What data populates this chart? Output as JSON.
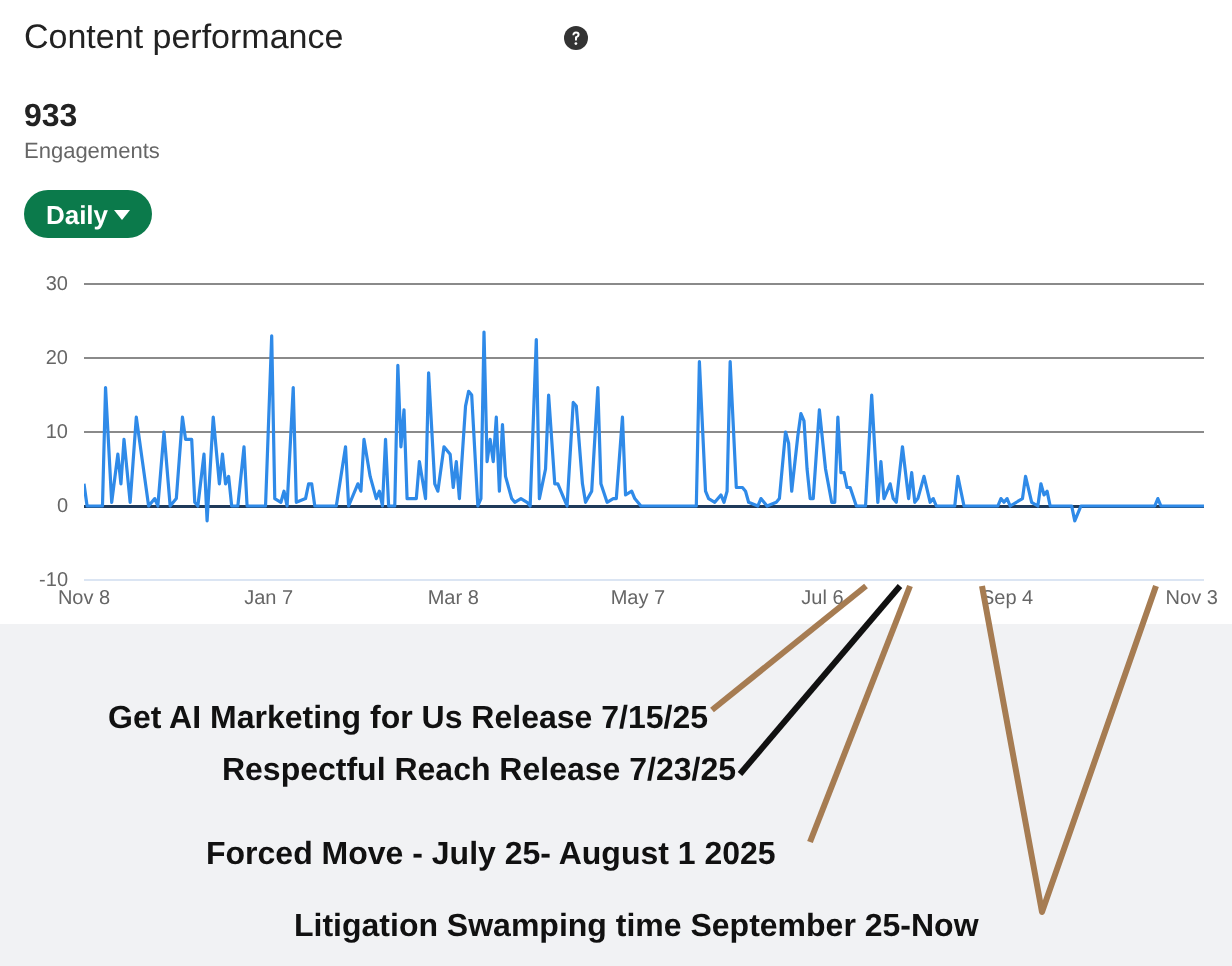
{
  "chart_data": {
    "type": "line",
    "title": "Content performance",
    "annotations": [
      "933",
      "Engagements",
      "Daily",
      "Get AI Marketing for Us Release 7/15/25",
      "Respectful Reach Release 7/23/25",
      "Forced Move - July 25- August 1 2025",
      "Litigation Swamping time September 25-Now"
    ],
    "x": [
      "2024-11-08",
      "2024-11-09",
      "2024-11-14",
      "2024-11-15",
      "2024-11-17",
      "2024-11-19",
      "2024-11-20",
      "2024-11-21",
      "2024-11-23",
      "2024-11-25",
      "2024-11-27",
      "2024-11-29",
      "2024-12-01",
      "2024-12-02",
      "2024-12-04",
      "2024-12-06",
      "2024-12-08",
      "2024-12-10",
      "2024-12-11",
      "2024-12-13",
      "2024-12-14",
      "2024-12-15",
      "2024-12-17",
      "2024-12-18",
      "2024-12-20",
      "2024-12-22",
      "2024-12-23",
      "2024-12-24",
      "2024-12-25",
      "2024-12-26",
      "2024-12-28",
      "2024-12-30",
      "2024-12-31",
      "2025-01-06",
      "2025-01-08",
      "2025-01-09",
      "2025-01-11",
      "2025-01-12",
      "2025-01-13",
      "2025-01-15",
      "2025-01-16",
      "2025-01-19",
      "2025-01-20",
      "2025-01-21",
      "2025-01-22",
      "2025-01-29",
      "2025-02-01",
      "2025-02-02",
      "2025-02-05",
      "2025-02-06",
      "2025-02-07",
      "2025-02-09",
      "2025-02-11",
      "2025-02-12",
      "2025-02-13",
      "2025-02-14",
      "2025-02-15",
      "2025-02-17",
      "2025-02-18",
      "2025-02-19",
      "2025-02-20",
      "2025-02-21",
      "2025-02-24",
      "2025-02-25",
      "2025-02-27",
      "2025-02-28",
      "2025-03-02",
      "2025-03-03",
      "2025-03-05",
      "2025-03-07",
      "2025-03-08",
      "2025-03-09",
      "2025-03-10",
      "2025-03-12",
      "2025-03-13",
      "2025-03-14",
      "2025-03-16",
      "2025-03-17",
      "2025-03-18",
      "2025-03-19",
      "2025-03-20",
      "2025-03-21",
      "2025-03-22",
      "2025-03-23",
      "2025-03-24",
      "2025-03-25",
      "2025-03-27",
      "2025-03-28",
      "2025-03-30",
      "2025-04-01",
      "2025-04-02",
      "2025-04-04",
      "2025-04-05",
      "2025-04-07",
      "2025-04-08",
      "2025-04-10",
      "2025-04-11",
      "2025-04-13",
      "2025-04-14",
      "2025-04-16",
      "2025-04-17",
      "2025-04-19",
      "2025-04-20",
      "2025-04-22",
      "2025-04-24",
      "2025-04-25",
      "2025-04-27",
      "2025-04-29",
      "2025-04-30",
      "2025-05-02",
      "2025-05-03",
      "2025-05-05",
      "2025-05-06",
      "2025-05-08",
      "2025-05-26",
      "2025-05-27",
      "2025-05-29",
      "2025-05-30",
      "2025-06-01",
      "2025-06-03",
      "2025-06-04",
      "2025-06-05",
      "2025-06-06",
      "2025-06-08",
      "2025-06-10",
      "2025-06-11",
      "2025-06-12",
      "2025-06-15",
      "2025-06-16",
      "2025-06-18",
      "2025-06-21",
      "2025-06-22",
      "2025-06-24",
      "2025-06-25",
      "2025-06-26",
      "2025-06-28",
      "2025-06-29",
      "2025-06-30",
      "2025-07-01",
      "2025-07-02",
      "2025-07-03",
      "2025-07-05",
      "2025-07-07",
      "2025-07-09",
      "2025-07-10",
      "2025-07-11",
      "2025-07-12",
      "2025-07-13",
      "2025-07-14",
      "2025-07-15",
      "2025-07-17",
      "2025-07-20",
      "2025-07-22",
      "2025-07-24",
      "2025-07-25",
      "2025-07-26",
      "2025-07-28",
      "2025-07-29",
      "2025-07-30",
      "2025-08-01",
      "2025-08-03",
      "2025-08-04",
      "2025-08-05",
      "2025-08-06",
      "2025-08-08",
      "2025-08-10",
      "2025-08-11",
      "2025-08-12",
      "2025-08-18",
      "2025-08-19",
      "2025-08-21",
      "2025-09-01",
      "2025-09-02",
      "2025-09-03",
      "2025-09-04",
      "2025-09-05",
      "2025-09-09",
      "2025-09-10",
      "2025-09-12",
      "2025-09-14",
      "2025-09-15",
      "2025-09-16",
      "2025-09-17",
      "2025-09-18",
      "2025-09-25",
      "2025-09-26",
      "2025-09-28",
      "2025-10-22",
      "2025-10-23",
      "2025-10-24",
      "2025-11-07"
    ],
    "series": [
      {
        "color": "#2f8ae8",
        "values": [
          3,
          0,
          0,
          16,
          0.5,
          7,
          3,
          9,
          0.5,
          12,
          6,
          0,
          1,
          0,
          10,
          0,
          1,
          12,
          9,
          9,
          0.5,
          0,
          7,
          -2,
          12,
          3,
          7,
          3,
          4,
          0,
          0,
          8,
          0,
          0,
          23,
          1,
          0.5,
          2,
          0,
          16,
          0.5,
          1,
          3,
          3,
          0,
          0,
          8,
          0,
          3,
          2,
          9,
          4,
          1,
          2,
          0,
          9,
          0,
          0,
          19,
          8,
          13,
          1,
          1,
          6,
          1,
          18,
          3,
          2,
          8,
          7,
          2.5,
          6,
          1,
          13.5,
          15.5,
          15,
          0,
          1,
          23.5,
          6,
          9,
          6,
          12,
          2,
          11,
          4,
          1,
          0.5,
          1,
          0.5,
          0,
          22.5,
          1,
          5,
          15,
          3,
          3,
          1,
          0,
          14,
          13.5,
          3,
          0.5,
          2,
          16,
          3,
          0.5,
          1,
          1,
          12,
          1.5,
          2,
          1,
          0,
          0,
          19.5,
          2,
          1,
          0.5,
          1.5,
          0.5,
          2,
          19.5,
          2.5,
          2.5,
          2,
          0.5,
          0,
          1,
          0,
          0.5,
          1,
          10,
          8.5,
          2,
          9.5,
          12.5,
          11.5,
          5,
          1,
          1,
          13,
          5,
          0.5,
          0.5,
          12,
          4.5,
          4.5,
          2.5,
          2.5,
          0,
          0,
          15,
          0.5,
          6,
          1,
          3,
          1,
          0.5,
          8,
          1,
          4.5,
          0.5,
          1,
          4,
          0.5,
          1,
          0,
          0,
          4,
          0,
          0,
          1,
          0.5,
          1,
          0,
          1,
          4,
          0.5,
          0,
          3,
          1.5,
          2,
          0,
          0,
          -2,
          0,
          0,
          1,
          0,
          0
        ]
      }
    ],
    "xlim": [
      "2024-11-08",
      "2025-11-07"
    ],
    "xticks": [
      {
        "value": "2024-11-08",
        "label": "Nov 8"
      },
      {
        "value": "2025-01-07",
        "label": "Jan 7"
      },
      {
        "value": "2025-03-08",
        "label": "Mar 8"
      },
      {
        "value": "2025-05-07",
        "label": "May 7"
      },
      {
        "value": "2025-07-06",
        "label": "Jul 6"
      },
      {
        "value": "2025-09-04",
        "label": "Sep 4"
      },
      {
        "value": "2025-11-03",
        "label": "Nov 3"
      }
    ],
    "ylim": [
      -10,
      30
    ],
    "yticks": [
      -10,
      0,
      10,
      20,
      30
    ],
    "grid": "y",
    "legend": false,
    "marker": "none",
    "line_style": "solid"
  }
}
